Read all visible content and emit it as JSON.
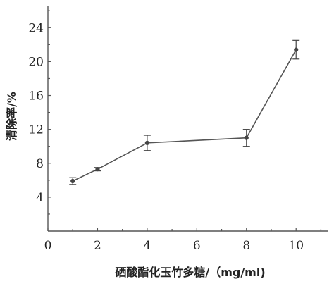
{
  "chart_data": {
    "type": "line",
    "title": "",
    "xlabel": "硒酸酯化玉竹多糖/（mg/ml)",
    "ylabel": "清除率/%",
    "xlim": [
      0,
      11.3
    ],
    "ylim": [
      0,
      26.6
    ],
    "xticks": [
      0,
      2,
      4,
      6,
      8,
      10
    ],
    "yticks": [
      4,
      8,
      12,
      16,
      20,
      24
    ],
    "grid": false,
    "legend": "none",
    "series": [
      {
        "x": [
          1,
          2,
          4,
          8,
          10
        ],
        "y": [
          5.9,
          7.3,
          10.4,
          11.0,
          21.4
        ],
        "error": [
          0.4,
          0.2,
          0.9,
          1.0,
          1.1
        ]
      }
    ]
  }
}
